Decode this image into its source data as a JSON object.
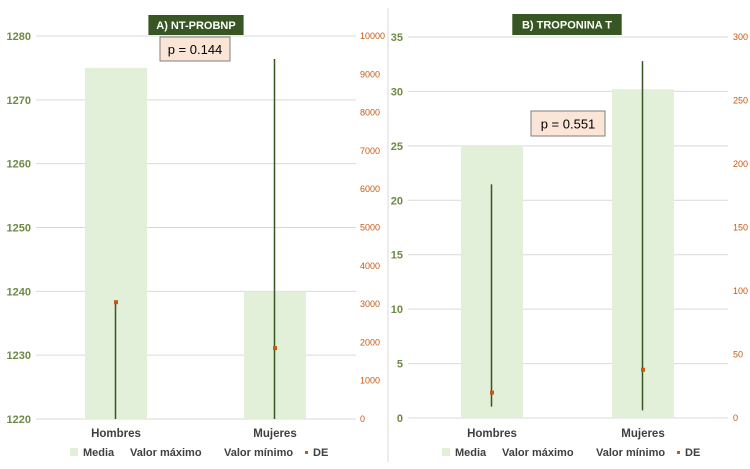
{
  "chart_data": [
    {
      "type": "bar",
      "title": "A) NT-PROBNP",
      "categories": [
        "Hombres",
        "Mujeres"
      ],
      "annotation": "p = 0.144",
      "left_axis": {
        "min": 1220,
        "max": 1280,
        "step": 10,
        "ticks": [
          "1220",
          "1230",
          "1240",
          "1250",
          "1260",
          "1270",
          "1280"
        ]
      },
      "right_axis": {
        "min": 0,
        "max": 10000,
        "step": 1000,
        "ticks": [
          "0",
          "1000",
          "2000",
          "3000",
          "4000",
          "5000",
          "6000",
          "7000",
          "8000",
          "9000",
          "10000"
        ]
      },
      "series": [
        {
          "name": "Media",
          "axis": "left",
          "values": [
            1275,
            1240
          ]
        },
        {
          "name": "Valor máximo",
          "axis": "right",
          "values": [
            3050,
            9400
          ]
        },
        {
          "name": "Valor mínimo",
          "axis": "right",
          "values": [
            0,
            0
          ]
        },
        {
          "name": "DE",
          "axis": "right",
          "values": [
            3050,
            1850
          ]
        }
      ],
      "grid": true,
      "legend_position": "bottom"
    },
    {
      "type": "bar",
      "title": "B) TROPONINA T",
      "categories": [
        "Hombres",
        "Mujeres"
      ],
      "annotation": "p = 0.551",
      "left_axis": {
        "min": 0,
        "max": 35,
        "step": 5,
        "ticks": [
          "0",
          "5",
          "10",
          "15",
          "20",
          "25",
          "30",
          "35"
        ]
      },
      "right_axis": {
        "min": 0,
        "max": 300,
        "step": 50,
        "ticks": [
          "0",
          "50",
          "100",
          "150",
          "200",
          "250",
          "300"
        ]
      },
      "series": [
        {
          "name": "Media",
          "axis": "left",
          "values": [
            25,
            30.2
          ]
        },
        {
          "name": "Valor máximo",
          "axis": "right",
          "values": [
            184,
            281
          ]
        },
        {
          "name": "Valor mínimo",
          "axis": "right",
          "values": [
            9,
            6
          ]
        },
        {
          "name": "DE",
          "axis": "right",
          "values": [
            20,
            38
          ]
        }
      ],
      "grid": true,
      "legend_position": "bottom"
    }
  ],
  "colors": {
    "media_bar": "#e2efd9",
    "range_line": "#375623",
    "de_marker": "#c55a11",
    "left_tick": "#6e8a43",
    "right_tick": "#c55a11",
    "title_bg": "#375623",
    "annotation_bg": "#fbe5d6",
    "annotation_border": "#7f7f7f"
  }
}
